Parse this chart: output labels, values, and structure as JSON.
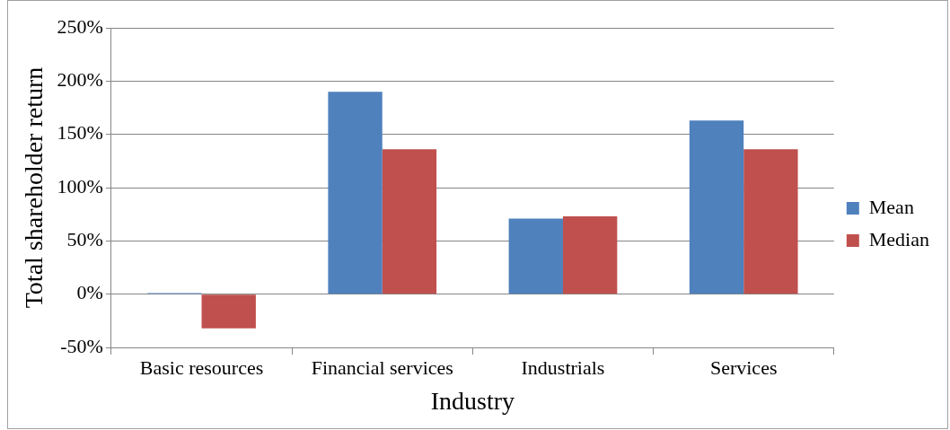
{
  "chart_data": {
    "type": "bar",
    "xlabel": "Industry",
    "ylabel": "Total shareholder return",
    "categories": [
      "Basic resources",
      "Financial services",
      "Industrials",
      "Services"
    ],
    "series": [
      {
        "name": "Mean",
        "color": "#4f81bd",
        "values": [
          1,
          190,
          71,
          163
        ]
      },
      {
        "name": "Median",
        "color": "#c0504d",
        "values": [
          -32,
          136,
          73,
          136
        ]
      }
    ],
    "ylim": [
      -50,
      250
    ],
    "yticks": [
      {
        "value": -50,
        "label": "-50%"
      },
      {
        "value": 0,
        "label": "0%"
      },
      {
        "value": 50,
        "label": "50%"
      },
      {
        "value": 100,
        "label": "100%"
      },
      {
        "value": 150,
        "label": "150%"
      },
      {
        "value": 200,
        "label": "200%"
      },
      {
        "value": 250,
        "label": "250%"
      }
    ],
    "grid": "y",
    "legend": "right"
  }
}
